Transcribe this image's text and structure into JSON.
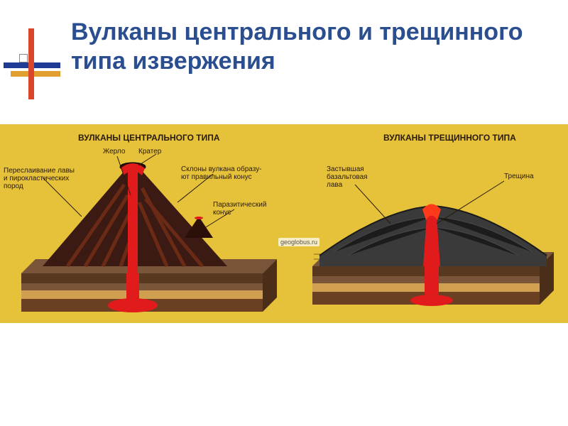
{
  "slide": {
    "title": "Вулканы центрального и трещинного типа извержения",
    "title_color": "#2a4e8f",
    "title_fontsize": 34
  },
  "decor": {
    "blue": "#1f3a93",
    "red": "#d9442a",
    "orange": "#e0a030"
  },
  "diagram": {
    "background": "#e6c23a",
    "left": {
      "title": "ВУЛКАНЫ ЦЕНТРАЛЬНОГО ТИПА",
      "labels": {
        "layers": "Переслаивание лавы\nи пирокластических\nпород",
        "vent": "Жерло",
        "crater": "Кратер",
        "slopes": "Склоны вулкана образу-\nют правильный конус",
        "parasitic": "Паразитический\nконус"
      },
      "colors": {
        "cone_dark": "#3a1a12",
        "cone_stripe": "#6b2a15",
        "lava": "#e11b1b",
        "ground_top": "#58381e",
        "ground_mid": "#7a553a",
        "ground_sand": "#d0a050",
        "ground_base": "#6b4022"
      }
    },
    "right": {
      "title": "ВУЛКАНЫ ТРЕЩИННОГО ТИПА",
      "labels": {
        "basalt": "Застывшая\nбазальтовая\nлава",
        "fissure": "Трещина"
      },
      "colors": {
        "shield_top": "#2f2f2f",
        "lava": "#e11b1b",
        "ground_top": "#58381e",
        "ground_mid": "#7a553a",
        "ground_sand": "#d0a050",
        "ground_base": "#6b4022"
      }
    },
    "watermark": "geoglobus.ru"
  }
}
